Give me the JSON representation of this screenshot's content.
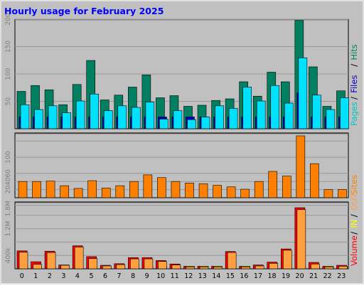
{
  "chart_data": {
    "type": "bar",
    "title": "Hourly usage for February 2025",
    "categories": [
      "0",
      "1",
      "2",
      "3",
      "4",
      "5",
      "6",
      "7",
      "8",
      "9",
      "10",
      "11",
      "12",
      "13",
      "14",
      "15",
      "16",
      "17",
      "18",
      "19",
      "20",
      "21",
      "22",
      "23"
    ],
    "colors": {
      "frame": "#ffffff",
      "background": "#c0c0c0",
      "title": "#0000ff",
      "grid": "#9a9a9a",
      "hits": "#008060",
      "files": "#0000c0",
      "pages": "#00e0ff",
      "visits": "#ff8000",
      "in": "#ffff00",
      "out": "#ffa040",
      "volume": "#ff0000"
    },
    "panels": [
      {
        "id": "requests",
        "legend": [
          {
            "label": "Pages",
            "color": "#00c8c8"
          },
          {
            "label": "Files",
            "color": "#0000c0"
          },
          {
            "label": "Hits",
            "color": "#008060"
          }
        ],
        "legend_sep": "/",
        "ylim": [
          0,
          200
        ],
        "yticks": [
          "50",
          "100",
          "150",
          "200"
        ],
        "series": [
          {
            "name": "Hits",
            "values": [
              70,
              81,
              73,
              45,
              83,
              128,
              54,
              63,
              78,
              101,
              58,
              62,
              42,
              44,
              53,
              56,
              88,
              61,
              106,
              88,
              203,
              116,
              42,
              71
            ]
          },
          {
            "name": "Files",
            "values": [
              22,
              22,
              22,
              22,
              22,
              22,
              22,
              22,
              22,
              22,
              22,
              22,
              22,
              22,
              22,
              22,
              22,
              22,
              22,
              22,
              67,
              22,
              22,
              22
            ]
          },
          {
            "name": "Pages",
            "values": [
              45,
              36,
              43,
              30,
              52,
              65,
              34,
              43,
              40,
              50,
              18,
              34,
              17,
              22,
              43,
              38,
              78,
              52,
              81,
              48,
              133,
              63,
              36,
              58
            ]
          }
        ]
      },
      {
        "id": "visits",
        "legend": [
          {
            "label": "Sites",
            "color": "#ff8000"
          }
        ],
        "legend_sep": "",
        "ylim": [
          0,
          160
        ],
        "yticks": [
          "20",
          "40",
          "60",
          "100"
        ],
        "series": [
          {
            "name": "Sites",
            "values": [
              42,
              42,
              43,
              31,
              24,
              44,
              25,
              31,
              42,
              59,
              52,
              42,
              38,
              36,
              32,
              28,
              22,
              42,
              68,
              56,
              160,
              88,
              21,
              21
            ]
          }
        ]
      },
      {
        "id": "volume",
        "legend": [
          {
            "label": "Volume",
            "color": "#ff0000"
          },
          {
            "label": "IN",
            "color": "#ffff00"
          },
          {
            "label": "OUT",
            "color": "#ffa040"
          }
        ],
        "legend_sep": "/",
        "ylim": [
          0,
          2000000
        ],
        "yticks": [
          "400k",
          "1.2M",
          "1.8M"
        ],
        "series": [
          {
            "name": "Volume",
            "values": [
              560000,
              220000,
              550000,
              120000,
              720000,
              380000,
              110000,
              160000,
              350000,
              350000,
              260000,
              150000,
              80000,
              80000,
              80000,
              540000,
              80000,
              120000,
              210000,
              620000,
              1910000,
              200000,
              80000,
              110000
            ]
          },
          {
            "name": "IN",
            "values": [
              80000,
              80000,
              80000,
              80000,
              80000,
              80000,
              80000,
              80000,
              80000,
              80000,
              80000,
              80000,
              80000,
              80000,
              80000,
              80000,
              80000,
              80000,
              80000,
              80000,
              80000,
              80000,
              80000,
              80000
            ]
          },
          {
            "name": "OUT",
            "values": [
              520000,
              140000,
              510000,
              110000,
              680000,
              320000,
              90000,
              130000,
              310000,
              310000,
              230000,
              120000,
              60000,
              60000,
              60000,
              510000,
              60000,
              90000,
              170000,
              580000,
              1850000,
              150000,
              60000,
              80000
            ]
          }
        ]
      }
    ]
  }
}
